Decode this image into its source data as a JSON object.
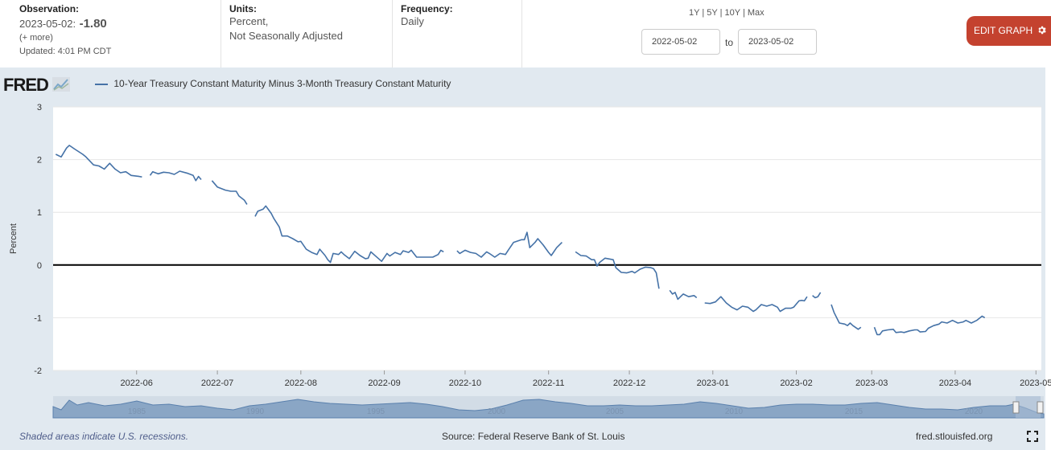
{
  "header": {
    "observation_label": "Observation:",
    "observation_date": "2023-05-02:",
    "observation_value": "-1.80",
    "more_link": "(+ more)",
    "updated": "Updated: 4:01 PM CDT",
    "units_label": "Units:",
    "units_line1": "Percent,",
    "units_line2": "Not Seasonally Adjusted",
    "frequency_label": "Frequency:",
    "frequency_value": "Daily",
    "range_1y": "1Y",
    "range_5y": "5Y",
    "range_10y": "10Y",
    "range_max": "Max",
    "range_sep": "|",
    "start_date": "2022-05-02",
    "to_label": "to",
    "end_date": "2023-05-02",
    "edit_button": "EDIT GRAPH"
  },
  "logo_text": "FRED",
  "footer": {
    "recession_note": "Shaded areas indicate U.S. recessions.",
    "source": "Source: Federal Reserve Bank of St. Louis",
    "site": "fred.stlouisfed.org"
  },
  "colors": {
    "line": "#4572a7",
    "edit_button": "#c4422f",
    "background": "#e1e9f0"
  },
  "chart_data": {
    "type": "line",
    "ylabel": "Percent",
    "ylim": [
      -2,
      3
    ],
    "yticks": [
      "3",
      "2",
      "1",
      "0",
      "-1",
      "-2"
    ],
    "xticks": [
      "2022-06",
      "2022-07",
      "2022-08",
      "2022-09",
      "2022-10",
      "2022-11",
      "2022-12",
      "2023-01",
      "2023-02",
      "2023-03",
      "2023-04",
      "2023-05"
    ],
    "navigator_labels": [
      "1985",
      "1990",
      "1995",
      "2000",
      "2005",
      "2010",
      "2015",
      "2020"
    ],
    "series": [
      {
        "name": "10-Year Treasury Constant Maturity Minus 3-Month Treasury Constant Maturity",
        "segments": [
          [
            [
              "2022-05-02",
              2.1
            ],
            [
              "2022-05-04",
              2.05
            ],
            [
              "2022-05-06",
              2.22
            ],
            [
              "2022-05-07",
              2.27
            ],
            [
              "2022-05-09",
              2.2
            ],
            [
              "2022-05-12",
              2.1
            ],
            [
              "2022-05-13",
              2.06
            ],
            [
              "2022-05-16",
              1.9
            ],
            [
              "2022-05-18",
              1.88
            ],
            [
              "2022-05-20",
              1.82
            ],
            [
              "2022-05-22",
              1.93
            ],
            [
              "2022-05-24",
              1.82
            ],
            [
              "2022-05-26",
              1.75
            ],
            [
              "2022-05-28",
              1.77
            ],
            [
              "2022-05-30",
              1.7
            ],
            [
              "2022-06-02",
              1.68
            ],
            [
              "2022-06-03",
              1.67
            ]
          ],
          [
            [
              "2022-06-06",
              1.7
            ],
            [
              "2022-06-07",
              1.77
            ],
            [
              "2022-06-09",
              1.73
            ],
            [
              "2022-06-11",
              1.76
            ],
            [
              "2022-06-13",
              1.75
            ],
            [
              "2022-06-15",
              1.72
            ],
            [
              "2022-06-17",
              1.78
            ],
            [
              "2022-06-20",
              1.74
            ],
            [
              "2022-06-22",
              1.7
            ],
            [
              "2022-06-23",
              1.6
            ],
            [
              "2022-06-24",
              1.68
            ],
            [
              "2022-06-25",
              1.62
            ]
          ],
          [
            [
              "2022-06-29",
              1.6
            ],
            [
              "2022-07-01",
              1.48
            ],
            [
              "2022-07-04",
              1.42
            ],
            [
              "2022-07-06",
              1.4
            ],
            [
              "2022-07-08",
              1.4
            ],
            [
              "2022-07-09",
              1.31
            ],
            [
              "2022-07-11",
              1.23
            ],
            [
              "2022-07-12",
              1.15
            ]
          ],
          [
            [
              "2022-07-15",
              0.92
            ],
            [
              "2022-07-16",
              1.02
            ],
            [
              "2022-07-18",
              1.06
            ],
            [
              "2022-07-19",
              1.12
            ],
            [
              "2022-07-21",
              0.98
            ],
            [
              "2022-07-22",
              0.88
            ],
            [
              "2022-07-24",
              0.72
            ],
            [
              "2022-07-25",
              0.55
            ],
            [
              "2022-07-27",
              0.55
            ],
            [
              "2022-07-29",
              0.5
            ],
            [
              "2022-07-31",
              0.44
            ],
            [
              "2022-08-01",
              0.45
            ],
            [
              "2022-08-03",
              0.3
            ],
            [
              "2022-08-05",
              0.24
            ],
            [
              "2022-08-07",
              0.2
            ],
            [
              "2022-08-08",
              0.3
            ],
            [
              "2022-08-10",
              0.18
            ],
            [
              "2022-08-11",
              0.1
            ],
            [
              "2022-08-12",
              0.05
            ],
            [
              "2022-08-13",
              0.22
            ],
            [
              "2022-08-15",
              0.2
            ],
            [
              "2022-08-16",
              0.25
            ],
            [
              "2022-08-17",
              0.2
            ],
            [
              "2022-08-19",
              0.12
            ],
            [
              "2022-08-21",
              0.26
            ],
            [
              "2022-08-23",
              0.18
            ],
            [
              "2022-08-25",
              0.12
            ],
            [
              "2022-08-26",
              0.13
            ],
            [
              "2022-08-27",
              0.25
            ],
            [
              "2022-08-29",
              0.16
            ],
            [
              "2022-08-31",
              0.07
            ],
            [
              "2022-09-02",
              0.22
            ],
            [
              "2022-09-03",
              0.17
            ],
            [
              "2022-09-05",
              0.24
            ],
            [
              "2022-09-07",
              0.2
            ],
            [
              "2022-09-08",
              0.27
            ],
            [
              "2022-09-10",
              0.24
            ],
            [
              "2022-09-11",
              0.28
            ],
            [
              "2022-09-13",
              0.15
            ],
            [
              "2022-09-16",
              0.15
            ],
            [
              "2022-09-19",
              0.15
            ],
            [
              "2022-09-21",
              0.2
            ],
            [
              "2022-09-22",
              0.28
            ],
            [
              "2022-09-23",
              0.25
            ]
          ],
          [
            [
              "2022-09-28",
              0.27
            ],
            [
              "2022-09-29",
              0.22
            ],
            [
              "2022-10-01",
              0.28
            ],
            [
              "2022-10-03",
              0.24
            ],
            [
              "2022-10-05",
              0.22
            ],
            [
              "2022-10-07",
              0.15
            ],
            [
              "2022-10-09",
              0.25
            ],
            [
              "2022-10-10",
              0.22
            ],
            [
              "2022-10-12",
              0.15
            ],
            [
              "2022-10-14",
              0.22
            ],
            [
              "2022-10-16",
              0.2
            ],
            [
              "2022-10-17",
              0.28
            ],
            [
              "2022-10-19",
              0.43
            ],
            [
              "2022-10-22",
              0.48
            ],
            [
              "2022-10-23",
              0.48
            ],
            [
              "2022-10-24",
              0.62
            ],
            [
              "2022-10-25",
              0.33
            ],
            [
              "2022-10-27",
              0.43
            ],
            [
              "2022-10-28",
              0.5
            ],
            [
              "2022-10-30",
              0.38
            ],
            [
              "2022-11-01",
              0.24
            ],
            [
              "2022-11-02",
              0.18
            ],
            [
              "2022-11-04",
              0.33
            ],
            [
              "2022-11-06",
              0.43
            ]
          ],
          [
            [
              "2022-11-11",
              0.25
            ],
            [
              "2022-11-13",
              0.18
            ],
            [
              "2022-11-15",
              0.17
            ],
            [
              "2022-11-17",
              0.1
            ],
            [
              "2022-11-18",
              0.1
            ],
            [
              "2022-11-19",
              -0.02
            ],
            [
              "2022-11-20",
              0.05
            ],
            [
              "2022-11-22",
              0.13
            ],
            [
              "2022-11-23",
              0.12
            ],
            [
              "2022-11-25",
              0.1
            ],
            [
              "2022-11-26",
              -0.05
            ],
            [
              "2022-11-28",
              -0.14
            ],
            [
              "2022-11-30",
              -0.15
            ],
            [
              "2022-12-02",
              -0.12
            ],
            [
              "2022-12-03",
              -0.15
            ],
            [
              "2022-12-05",
              -0.08
            ],
            [
              "2022-12-07",
              -0.04
            ],
            [
              "2022-12-09",
              -0.05
            ],
            [
              "2022-12-10",
              -0.07
            ],
            [
              "2022-12-11",
              -0.15
            ],
            [
              "2022-12-12",
              -0.45
            ]
          ],
          [
            [
              "2022-12-16",
              -0.48
            ],
            [
              "2022-12-17",
              -0.55
            ],
            [
              "2022-12-18",
              -0.52
            ],
            [
              "2022-12-19",
              -0.65
            ],
            [
              "2022-12-21",
              -0.55
            ],
            [
              "2022-12-23",
              -0.6
            ],
            [
              "2022-12-25",
              -0.58
            ],
            [
              "2022-12-26",
              -0.62
            ]
          ],
          [
            [
              "2022-12-29",
              -0.72
            ],
            [
              "2022-12-31",
              -0.73
            ],
            [
              "2023-01-02",
              -0.7
            ],
            [
              "2023-01-04",
              -0.6
            ],
            [
              "2023-01-06",
              -0.72
            ],
            [
              "2023-01-08",
              -0.8
            ],
            [
              "2023-01-10",
              -0.85
            ],
            [
              "2023-01-12",
              -0.78
            ],
            [
              "2023-01-14",
              -0.8
            ],
            [
              "2023-01-16",
              -0.88
            ],
            [
              "2023-01-17",
              -0.85
            ],
            [
              "2023-01-19",
              -0.75
            ],
            [
              "2023-01-21",
              -0.78
            ],
            [
              "2023-01-23",
              -0.75
            ],
            [
              "2023-01-25",
              -0.8
            ],
            [
              "2023-01-26",
              -0.88
            ],
            [
              "2023-01-28",
              -0.82
            ],
            [
              "2023-01-30",
              -0.82
            ],
            [
              "2023-01-31",
              -0.8
            ],
            [
              "2023-02-02",
              -0.68
            ],
            [
              "2023-02-03",
              -0.67
            ],
            [
              "2023-02-04",
              -0.68
            ],
            [
              "2023-02-05",
              -0.6
            ]
          ],
          [
            [
              "2023-02-07",
              -0.58
            ],
            [
              "2023-02-08",
              -0.62
            ],
            [
              "2023-02-09",
              -0.6
            ],
            [
              "2023-02-10",
              -0.52
            ]
          ],
          [
            [
              "2023-02-14",
              -0.75
            ],
            [
              "2023-02-15",
              -0.9
            ],
            [
              "2023-02-17",
              -1.1
            ],
            [
              "2023-02-19",
              -1.12
            ],
            [
              "2023-02-20",
              -1.15
            ],
            [
              "2023-02-21",
              -1.1
            ],
            [
              "2023-02-22",
              -1.15
            ],
            [
              "2023-02-24",
              -1.22
            ],
            [
              "2023-02-25",
              -1.18
            ]
          ],
          [
            [
              "2023-03-02",
              -1.18
            ],
            [
              "2023-03-03",
              -1.32
            ],
            [
              "2023-03-04",
              -1.32
            ],
            [
              "2023-03-05",
              -1.25
            ],
            [
              "2023-03-07",
              -1.23
            ],
            [
              "2023-03-09",
              -1.22
            ],
            [
              "2023-03-10",
              -1.28
            ],
            [
              "2023-03-12",
              -1.27
            ],
            [
              "2023-03-13",
              -1.28
            ],
            [
              "2023-03-15",
              -1.25
            ],
            [
              "2023-03-17",
              -1.23
            ],
            [
              "2023-03-18",
              -1.23
            ],
            [
              "2023-03-19",
              -1.27
            ],
            [
              "2023-03-21",
              -1.26
            ],
            [
              "2023-03-22",
              -1.2
            ],
            [
              "2023-03-24",
              -1.15
            ],
            [
              "2023-03-26",
              -1.12
            ],
            [
              "2023-03-27",
              -1.08
            ],
            [
              "2023-03-29",
              -1.1
            ],
            [
              "2023-03-31",
              -1.05
            ],
            [
              "2023-04-02",
              -1.1
            ],
            [
              "2023-04-04",
              -1.08
            ],
            [
              "2023-04-05",
              -1.05
            ],
            [
              "2023-04-07",
              -1.1
            ],
            [
              "2023-04-09",
              -1.05
            ],
            [
              "2023-04-11",
              -0.97
            ],
            [
              "2023-04-12",
              -1.0
            ]
          ]
        ]
      }
    ]
  }
}
